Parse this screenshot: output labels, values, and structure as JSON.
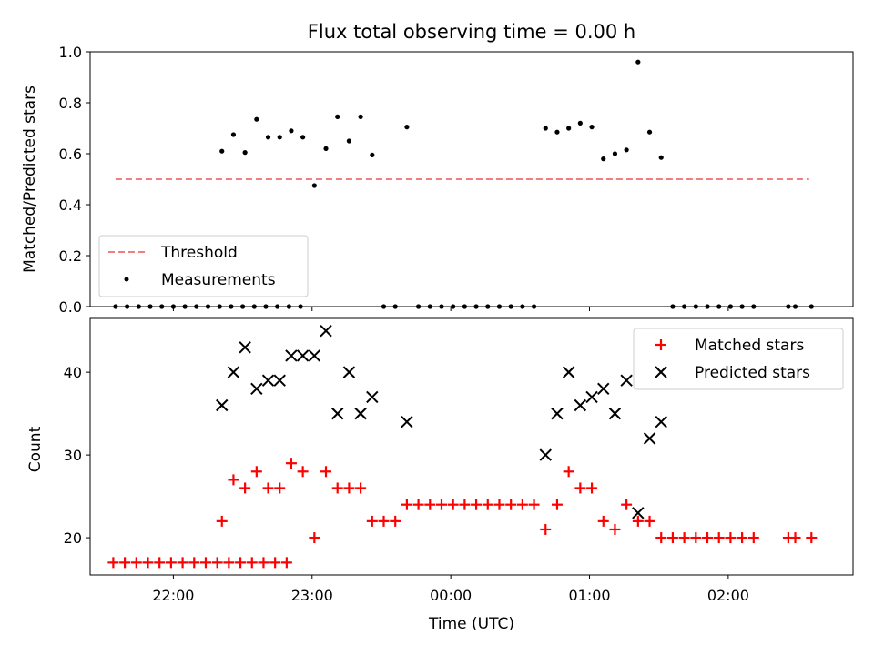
{
  "chart_data": [
    {
      "type": "scatter",
      "title": "Flux total observing time = 0.00 h",
      "xlabel": "",
      "ylabel": "Matched/Predicted stars",
      "xlim": [
        "21:24",
        "02:54"
      ],
      "ylim": [
        0,
        1
      ],
      "yticks": [
        "0.0",
        "0.2",
        "0.4",
        "0.6",
        "0.8",
        "1.0"
      ],
      "grid": false,
      "legend_position": "lower-left",
      "threshold": {
        "name": "Threshold",
        "value": 0.5,
        "x_range": [
          "21:35",
          "02:35"
        ],
        "color": "#f08080",
        "style": "dashed"
      },
      "series": [
        {
          "name": "Measurements",
          "marker": "dot",
          "color": "#000000",
          "points": [
            [
              "21:35",
              0.0
            ],
            [
              "21:40",
              0.0
            ],
            [
              "21:45",
              0.0
            ],
            [
              "21:50",
              0.0
            ],
            [
              "21:55",
              0.0
            ],
            [
              "22:00",
              0.0
            ],
            [
              "22:05",
              0.0
            ],
            [
              "22:10",
              0.0
            ],
            [
              "22:15",
              0.0
            ],
            [
              "22:20",
              0.0
            ],
            [
              "22:25",
              0.0
            ],
            [
              "22:30",
              0.0
            ],
            [
              "22:35",
              0.0
            ],
            [
              "22:40",
              0.0
            ],
            [
              "22:45",
              0.0
            ],
            [
              "22:50",
              0.0
            ],
            [
              "22:55",
              0.0
            ],
            [
              "22:21",
              0.61
            ],
            [
              "22:26",
              0.675
            ],
            [
              "22:31",
              0.605
            ],
            [
              "22:36",
              0.735
            ],
            [
              "22:41",
              0.665
            ],
            [
              "22:46",
              0.665
            ],
            [
              "22:51",
              0.69
            ],
            [
              "22:56",
              0.665
            ],
            [
              "23:01",
              0.475
            ],
            [
              "23:06",
              0.62
            ],
            [
              "23:11",
              0.745
            ],
            [
              "23:16",
              0.65
            ],
            [
              "23:21",
              0.745
            ],
            [
              "23:26",
              0.595
            ],
            [
              "23:31",
              0.0
            ],
            [
              "23:36",
              0.0
            ],
            [
              "23:41",
              0.705
            ],
            [
              "23:46",
              0.0
            ],
            [
              "23:51",
              0.0
            ],
            [
              "23:56",
              0.0
            ],
            [
              "00:01",
              0.0
            ],
            [
              "00:06",
              0.0
            ],
            [
              "00:11",
              0.0
            ],
            [
              "00:16",
              0.0
            ],
            [
              "00:21",
              0.0
            ],
            [
              "00:26",
              0.0
            ],
            [
              "00:31",
              0.0
            ],
            [
              "00:36",
              0.0
            ],
            [
              "00:41",
              0.7
            ],
            [
              "00:46",
              0.685
            ],
            [
              "00:51",
              0.7
            ],
            [
              "00:56",
              0.72
            ],
            [
              "01:01",
              0.705
            ],
            [
              "01:06",
              0.58
            ],
            [
              "01:11",
              0.6
            ],
            [
              "01:16",
              0.615
            ],
            [
              "01:21",
              0.96
            ],
            [
              "01:26",
              0.685
            ],
            [
              "01:31",
              0.585
            ],
            [
              "01:36",
              0.0
            ],
            [
              "01:41",
              0.0
            ],
            [
              "01:46",
              0.0
            ],
            [
              "01:51",
              0.0
            ],
            [
              "01:56",
              0.0
            ],
            [
              "02:01",
              0.0
            ],
            [
              "02:06",
              0.0
            ],
            [
              "02:11",
              0.0
            ],
            [
              "02:26",
              0.0
            ],
            [
              "02:29",
              0.0
            ],
            [
              "02:36",
              0.0
            ]
          ]
        }
      ]
    },
    {
      "type": "scatter",
      "title": "",
      "xlabel": "Time (UTC)",
      "ylabel": "Count",
      "xlim": [
        "21:24",
        "02:54"
      ],
      "ylim": [
        15.5,
        46.5
      ],
      "yticks": [
        "20",
        "30",
        "40"
      ],
      "xticks": [
        "22:00",
        "23:00",
        "00:00",
        "01:00",
        "02:00"
      ],
      "grid": false,
      "legend_position": "upper-right",
      "series": [
        {
          "name": "Matched stars",
          "marker": "plus",
          "color": "#ff0000",
          "points": [
            [
              "21:34",
              17
            ],
            [
              "21:39",
              17
            ],
            [
              "21:44",
              17
            ],
            [
              "21:49",
              17
            ],
            [
              "21:54",
              17
            ],
            [
              "21:59",
              17
            ],
            [
              "22:04",
              17
            ],
            [
              "22:09",
              17
            ],
            [
              "22:14",
              17
            ],
            [
              "22:19",
              17
            ],
            [
              "22:24",
              17
            ],
            [
              "22:29",
              17
            ],
            [
              "22:34",
              17
            ],
            [
              "22:39",
              17
            ],
            [
              "22:44",
              17
            ],
            [
              "22:49",
              17
            ],
            [
              "22:21",
              22
            ],
            [
              "22:26",
              27
            ],
            [
              "22:31",
              26
            ],
            [
              "22:36",
              28
            ],
            [
              "22:41",
              26
            ],
            [
              "22:46",
              26
            ],
            [
              "22:51",
              29
            ],
            [
              "22:56",
              28
            ],
            [
              "23:01",
              20
            ],
            [
              "23:06",
              28
            ],
            [
              "23:11",
              26
            ],
            [
              "23:16",
              26
            ],
            [
              "23:21",
              26
            ],
            [
              "23:26",
              22
            ],
            [
              "23:31",
              22
            ],
            [
              "23:36",
              22
            ],
            [
              "23:41",
              24
            ],
            [
              "23:46",
              24
            ],
            [
              "23:51",
              24
            ],
            [
              "23:56",
              24
            ],
            [
              "00:01",
              24
            ],
            [
              "00:06",
              24
            ],
            [
              "00:11",
              24
            ],
            [
              "00:16",
              24
            ],
            [
              "00:21",
              24
            ],
            [
              "00:26",
              24
            ],
            [
              "00:31",
              24
            ],
            [
              "00:36",
              24
            ],
            [
              "00:41",
              21
            ],
            [
              "00:46",
              24
            ],
            [
              "00:51",
              28
            ],
            [
              "00:56",
              26
            ],
            [
              "01:01",
              26
            ],
            [
              "01:06",
              22
            ],
            [
              "01:11",
              21
            ],
            [
              "01:16",
              24
            ],
            [
              "01:21",
              22
            ],
            [
              "01:26",
              22
            ],
            [
              "01:31",
              20
            ],
            [
              "01:36",
              20
            ],
            [
              "01:41",
              20
            ],
            [
              "01:46",
              20
            ],
            [
              "01:51",
              20
            ],
            [
              "01:56",
              20
            ],
            [
              "02:01",
              20
            ],
            [
              "02:06",
              20
            ],
            [
              "02:11",
              20
            ],
            [
              "02:26",
              20
            ],
            [
              "02:29",
              20
            ],
            [
              "02:36",
              20
            ]
          ]
        },
        {
          "name": "Predicted stars",
          "marker": "x",
          "color": "#000000",
          "points": [
            [
              "22:21",
              36
            ],
            [
              "22:26",
              40
            ],
            [
              "22:31",
              43
            ],
            [
              "22:36",
              38
            ],
            [
              "22:41",
              39
            ],
            [
              "22:46",
              39
            ],
            [
              "22:51",
              42
            ],
            [
              "22:56",
              42
            ],
            [
              "23:01",
              42
            ],
            [
              "23:06",
              45
            ],
            [
              "23:11",
              35
            ],
            [
              "23:16",
              40
            ],
            [
              "23:21",
              35
            ],
            [
              "23:26",
              37
            ],
            [
              "23:41",
              34
            ],
            [
              "00:41",
              30
            ],
            [
              "00:46",
              35
            ],
            [
              "00:51",
              40
            ],
            [
              "00:56",
              36
            ],
            [
              "01:01",
              37
            ],
            [
              "01:06",
              38
            ],
            [
              "01:11",
              35
            ],
            [
              "01:16",
              39
            ],
            [
              "01:21",
              23
            ],
            [
              "01:26",
              32
            ],
            [
              "01:31",
              34
            ]
          ]
        }
      ]
    }
  ]
}
